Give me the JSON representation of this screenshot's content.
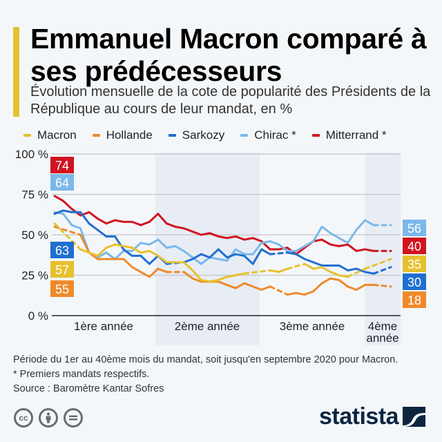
{
  "title": "Emmanuel Macron comparé à ses prédécesseurs",
  "subtitle": "Évolution mensuelle de la cote de popularité des Présidents de la République au cours de leur mandat, en %",
  "footnotes": [
    "Période du 1er au 40ème mois du mandat, soit jusqu'en septembre 2020 pour Macron.",
    "* Premiers mandats respectifs.",
    "Source : Baromètre Kantar Sofres"
  ],
  "license_icons": [
    "cc-icon",
    "attribution-icon",
    "no-derivatives-icon"
  ],
  "brand": "statista",
  "chart_data": {
    "type": "line",
    "title": "Emmanuel Macron comparé à ses prédécesseurs",
    "xlabel": "",
    "ylabel": "",
    "x": [
      1,
      2,
      3,
      4,
      5,
      6,
      7,
      8,
      9,
      10,
      11,
      12,
      13,
      14,
      15,
      16,
      17,
      18,
      19,
      20,
      21,
      22,
      23,
      24,
      25,
      26,
      27,
      28,
      29,
      30,
      31,
      32,
      33,
      34,
      35,
      36,
      37,
      38,
      39,
      40
    ],
    "ylim": [
      0,
      100
    ],
    "yticks": [
      0,
      25,
      50,
      75,
      100
    ],
    "ytick_labels": [
      "0 %",
      "25 %",
      "50 %",
      "75 %",
      "100 %"
    ],
    "year_bands": [
      {
        "label": "1ère année",
        "start": 1,
        "end": 12,
        "shaded": false
      },
      {
        "label": "2ème année",
        "start": 13,
        "end": 24,
        "shaded": true
      },
      {
        "label": "3ème année",
        "start": 25,
        "end": 36,
        "shaded": false
      },
      {
        "label": "4ème année",
        "start": 37,
        "end": 40,
        "shaded": true
      }
    ],
    "grid": true,
    "legend": "top",
    "series": [
      {
        "name": "Macron",
        "legend_label": "Macron",
        "color": "#e6c12e",
        "start_label": 57,
        "end_label": 35,
        "values": [
          57,
          null,
          null,
          41,
          39,
          37,
          42,
          44,
          43,
          42,
          39,
          40,
          37,
          33,
          33,
          33,
          28,
          22,
          21,
          22,
          24,
          25,
          26,
          null,
          null,
          28,
          27,
          29,
          null,
          32,
          29,
          30,
          27,
          25,
          24,
          null,
          29,
          null,
          null,
          35
        ]
      },
      {
        "name": "Hollande",
        "legend_label": "Hollande",
        "color": "#ee8a2b",
        "start_label": 55,
        "end_label": 18,
        "values": [
          55,
          null,
          null,
          50,
          39,
          35,
          35,
          35,
          35,
          30,
          27,
          24,
          29,
          27,
          null,
          27,
          23,
          21,
          21,
          21,
          19,
          17,
          20,
          18,
          16,
          18,
          null,
          13,
          14,
          13,
          15,
          20,
          23,
          22,
          18,
          16,
          19,
          19,
          null,
          18
        ]
      },
      {
        "name": "Sarkozy",
        "legend_label": "Sarkozy",
        "color": "#1f6fd1",
        "start_label": 63,
        "end_label": 30,
        "values": [
          63,
          65,
          64,
          64,
          57,
          53,
          49,
          49,
          41,
          37,
          37,
          32,
          37,
          32,
          null,
          33,
          35,
          38,
          36,
          41,
          36,
          38,
          37,
          32,
          41,
          38,
          null,
          39,
          38,
          35,
          33,
          31,
          31,
          31,
          28,
          29,
          27,
          26,
          null,
          30
        ]
      },
      {
        "name": "Chirac",
        "legend_label": "Chirac *",
        "color": "#7bb8ea",
        "start_label": 64,
        "end_label": 56,
        "values": [
          64,
          63,
          56,
          54,
          39,
          36,
          39,
          35,
          40,
          40,
          45,
          44,
          47,
          42,
          43,
          40,
          36,
          32,
          36,
          35,
          34,
          41,
          38,
          38,
          45,
          46,
          44,
          40,
          40,
          43,
          46,
          55,
          51,
          48,
          45,
          53,
          59,
          56,
          null,
          56
        ]
      },
      {
        "name": "Mitterrand",
        "legend_label": "Mitterrand *",
        "color": "#d0141f",
        "start_label": 74,
        "end_label": 40,
        "values": [
          74,
          71,
          66,
          62,
          64,
          60,
          57,
          59,
          58,
          58,
          56,
          58,
          63,
          57,
          55,
          54,
          52,
          50,
          51,
          49,
          48,
          49,
          47,
          48,
          46,
          41,
          41,
          42,
          38,
          42,
          46,
          47,
          44,
          43,
          44,
          40,
          41,
          40,
          null,
          40
        ]
      }
    ]
  }
}
